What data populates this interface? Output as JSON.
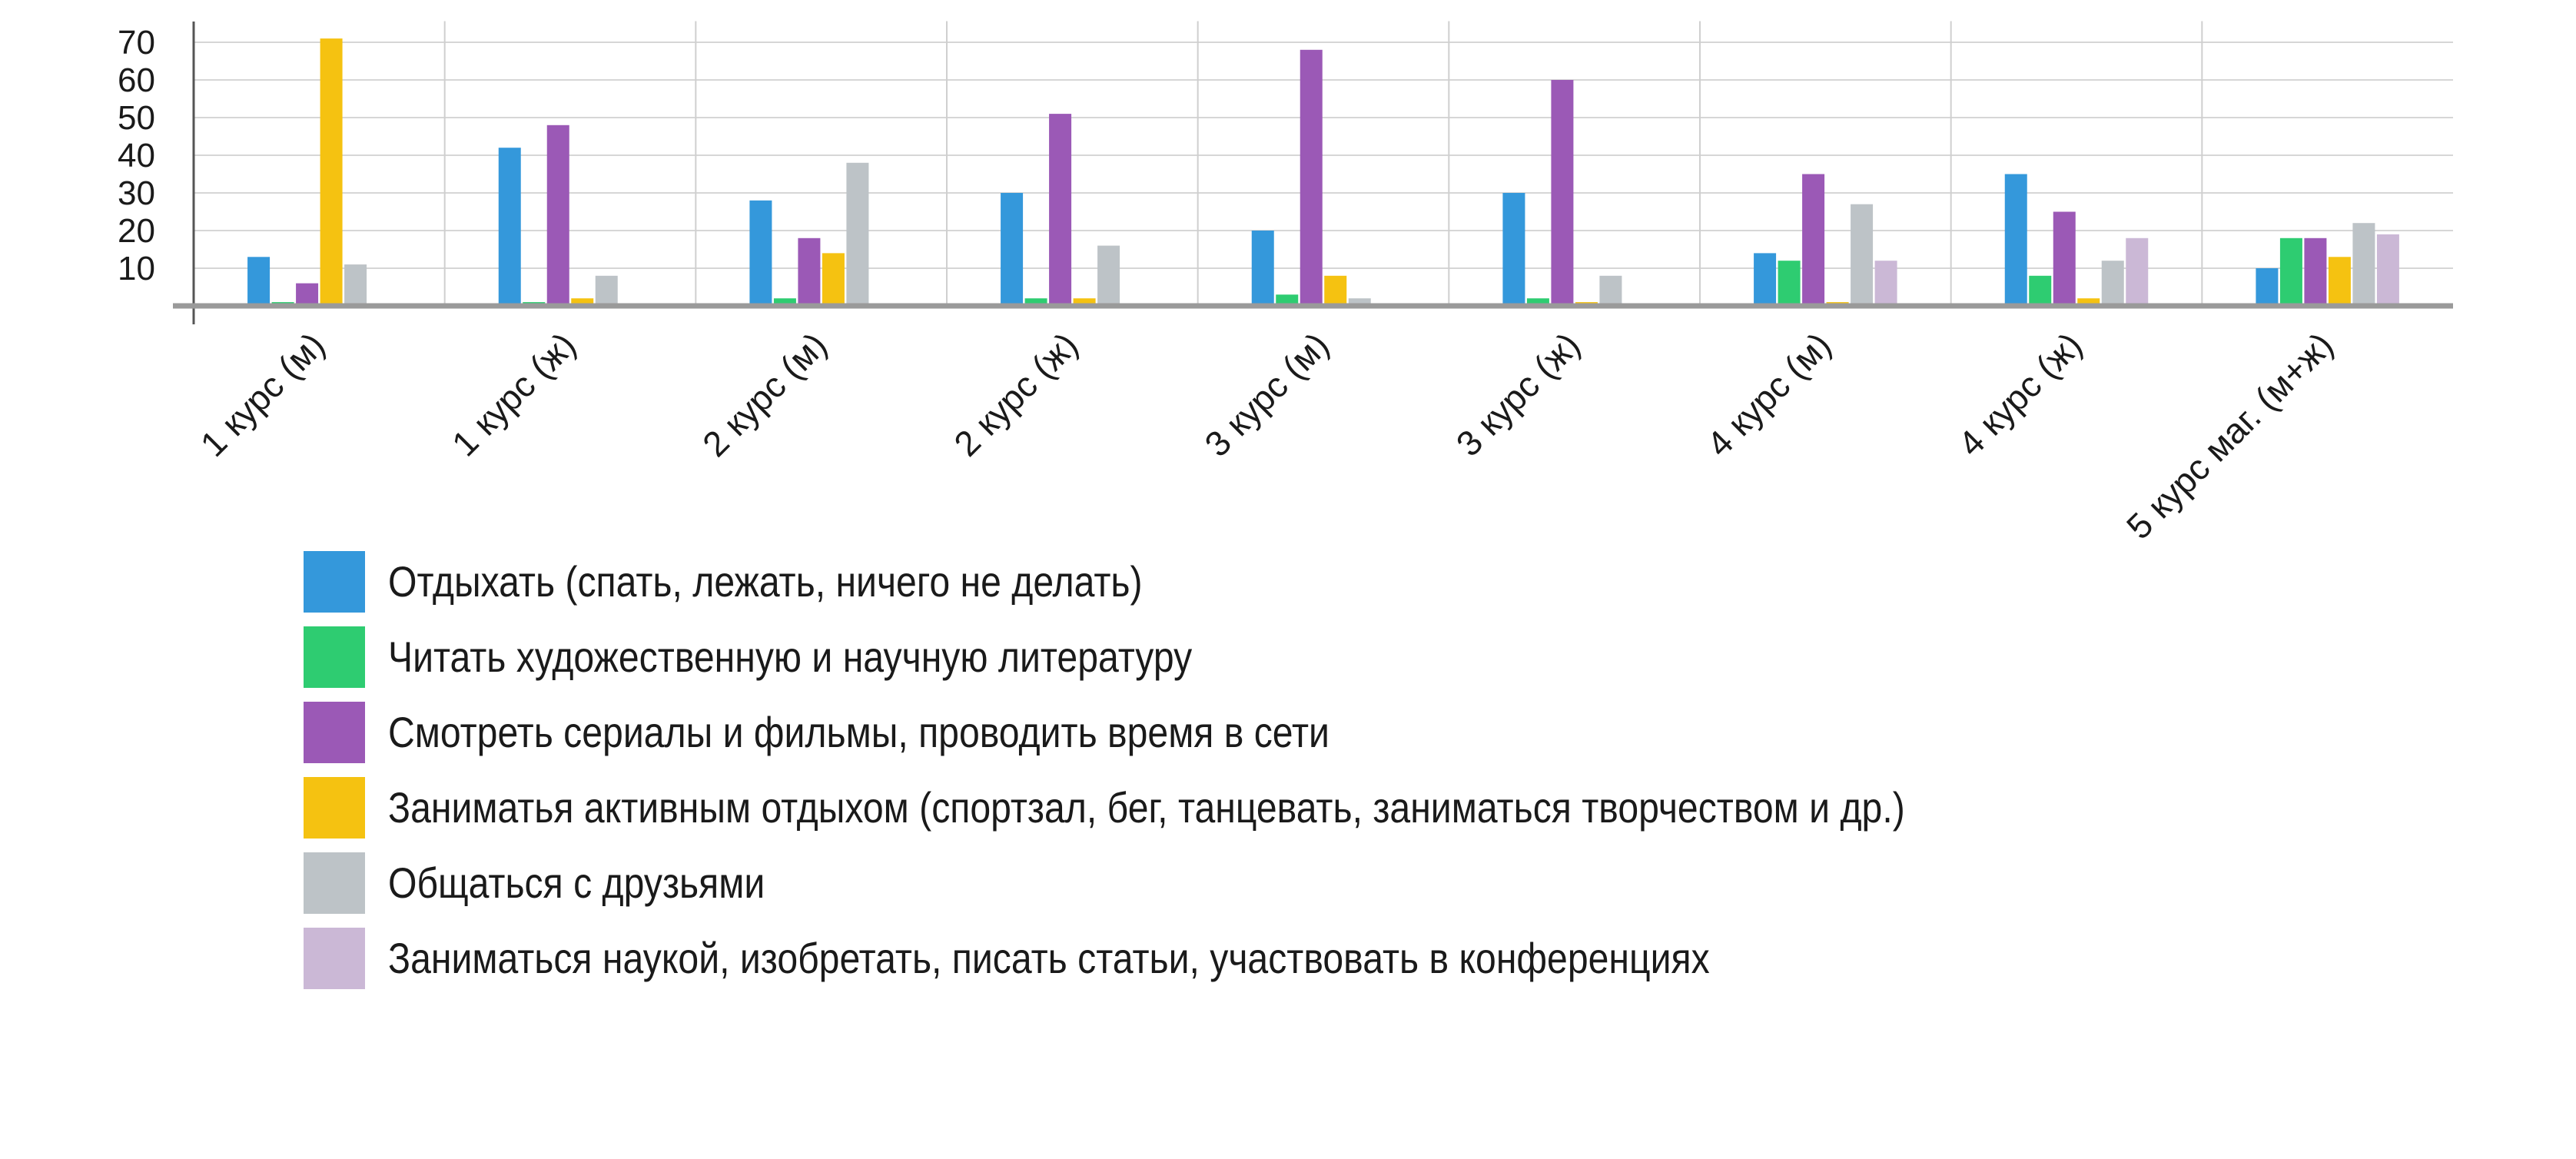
{
  "chart_data": {
    "type": "bar",
    "categories": [
      "1 курс (м)",
      "1 курс (ж)",
      "2 курс (м)",
      "2 курс (ж)",
      "3 курс (м)",
      "3 курс (ж)",
      "4 курс (м)",
      "4 курс (ж)",
      "5 курс маг. (м+ж)"
    ],
    "series": [
      {
        "name": "Отдыхать (спать, лежать, ничего не делать)",
        "color": "#3498db",
        "values": [
          13,
          42,
          28,
          30,
          20,
          30,
          14,
          35,
          10
        ]
      },
      {
        "name": "Читать художественную и научную литературу",
        "color": "#2ecc71",
        "values": [
          1,
          1,
          2,
          2,
          3,
          2,
          12,
          8,
          18
        ]
      },
      {
        "name": "Смотреть сериалы и фильмы, проводить время в сети",
        "color": "#9b59b6",
        "values": [
          6,
          48,
          18,
          51,
          68,
          60,
          35,
          25,
          18
        ]
      },
      {
        "name": "Заниматья активным отдыхом (спортзал, бег, танцевать, заниматься творчеством и др.)",
        "color": "#f5c211",
        "values": [
          71,
          2,
          14,
          2,
          8,
          1,
          1,
          2,
          13
        ]
      },
      {
        "name": "Общаться с друзьями",
        "color": "#bdc3c7",
        "values": [
          11,
          8,
          38,
          16,
          2,
          8,
          27,
          12,
          22
        ]
      },
      {
        "name": "Заниматься наукой, изобретать, писать статьи, участвовать в конференциях",
        "color": "#cbb8d6",
        "values": [
          0,
          0,
          0,
          0,
          0,
          0,
          12,
          18,
          19
        ]
      }
    ],
    "yticks": [
      10,
      20,
      30,
      40,
      50,
      60,
      70
    ],
    "ylim": [
      0,
      75
    ],
    "grid": true,
    "legend_position": "bottom",
    "title": "",
    "xlabel": "",
    "ylabel": ""
  }
}
